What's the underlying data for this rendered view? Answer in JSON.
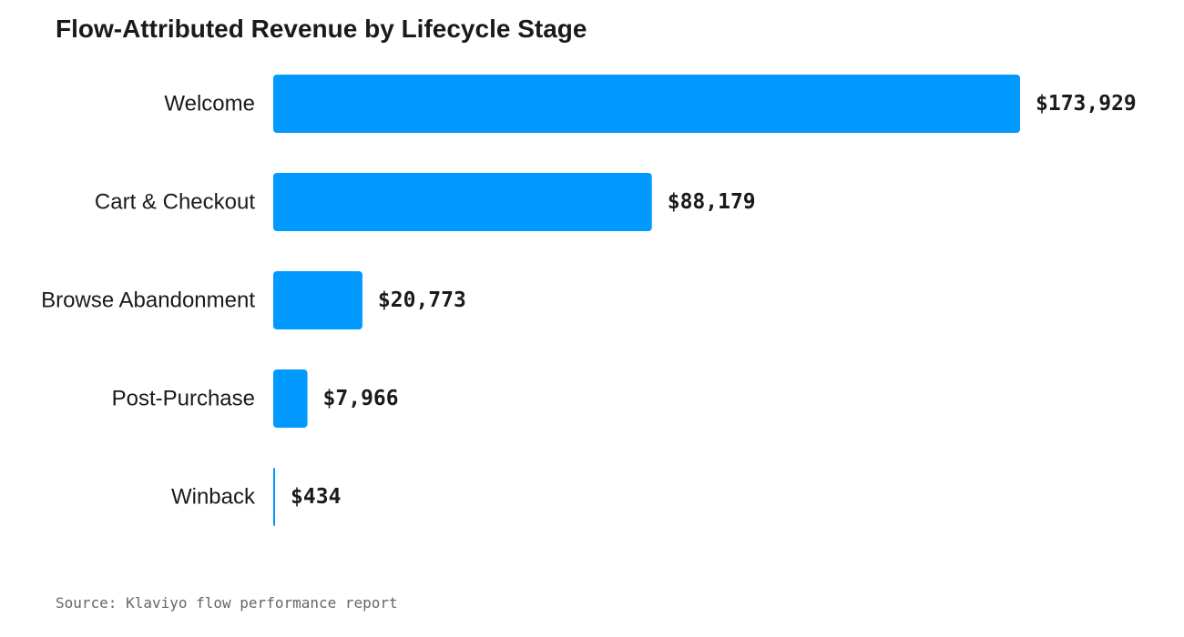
{
  "chart_data": {
    "type": "bar",
    "orientation": "horizontal",
    "title": "Flow-Attributed Revenue by Lifecycle Stage",
    "categories": [
      "Welcome",
      "Cart & Checkout",
      "Browse Abandonment",
      "Post-Purchase",
      "Winback"
    ],
    "values": [
      173929,
      88179,
      20773,
      7966,
      434
    ],
    "value_labels": [
      "$173,929",
      "$88,179",
      "$20,773",
      "$7,966",
      "$434"
    ],
    "xlim": [
      0,
      173929
    ],
    "grid": false,
    "legend": "none",
    "bar_color": "#0099ff",
    "source": "Source: Klaviyo flow performance report"
  }
}
